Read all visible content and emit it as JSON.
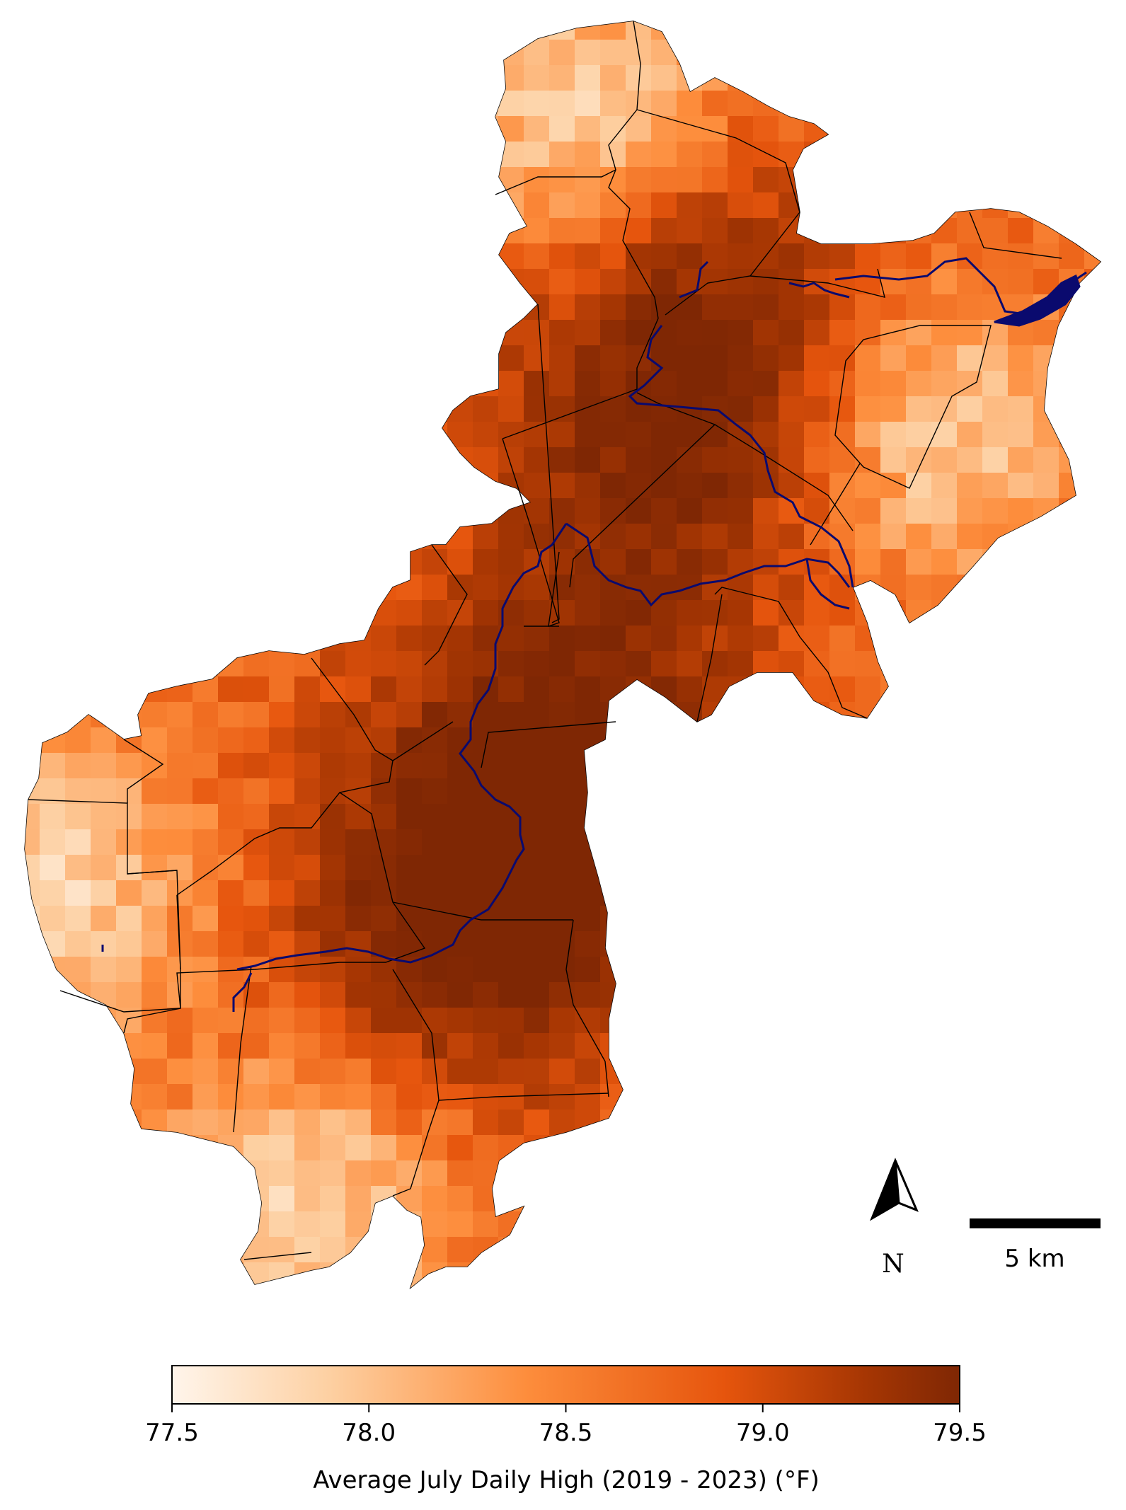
{
  "map": {
    "north_label": "N",
    "scale_label": "5 km"
  },
  "colorbar": {
    "min": 77.5,
    "max": 79.5,
    "ticks": [
      "77.5",
      "78.0",
      "78.5",
      "79.0",
      "79.5"
    ],
    "title": "Average July Daily High (2019 - 2023) (°F)",
    "colormap": [
      "#fff5eb",
      "#fdd0a2",
      "#fd8d3c",
      "#e6550d",
      "#a63603",
      "#7f2704"
    ]
  },
  "colors": {
    "region_fill": "#e86a1e",
    "hot_zone": "#8c2f05",
    "cool_zone": "#fde0c0",
    "river": "#0a0a6e",
    "boundary": "#000000"
  }
}
